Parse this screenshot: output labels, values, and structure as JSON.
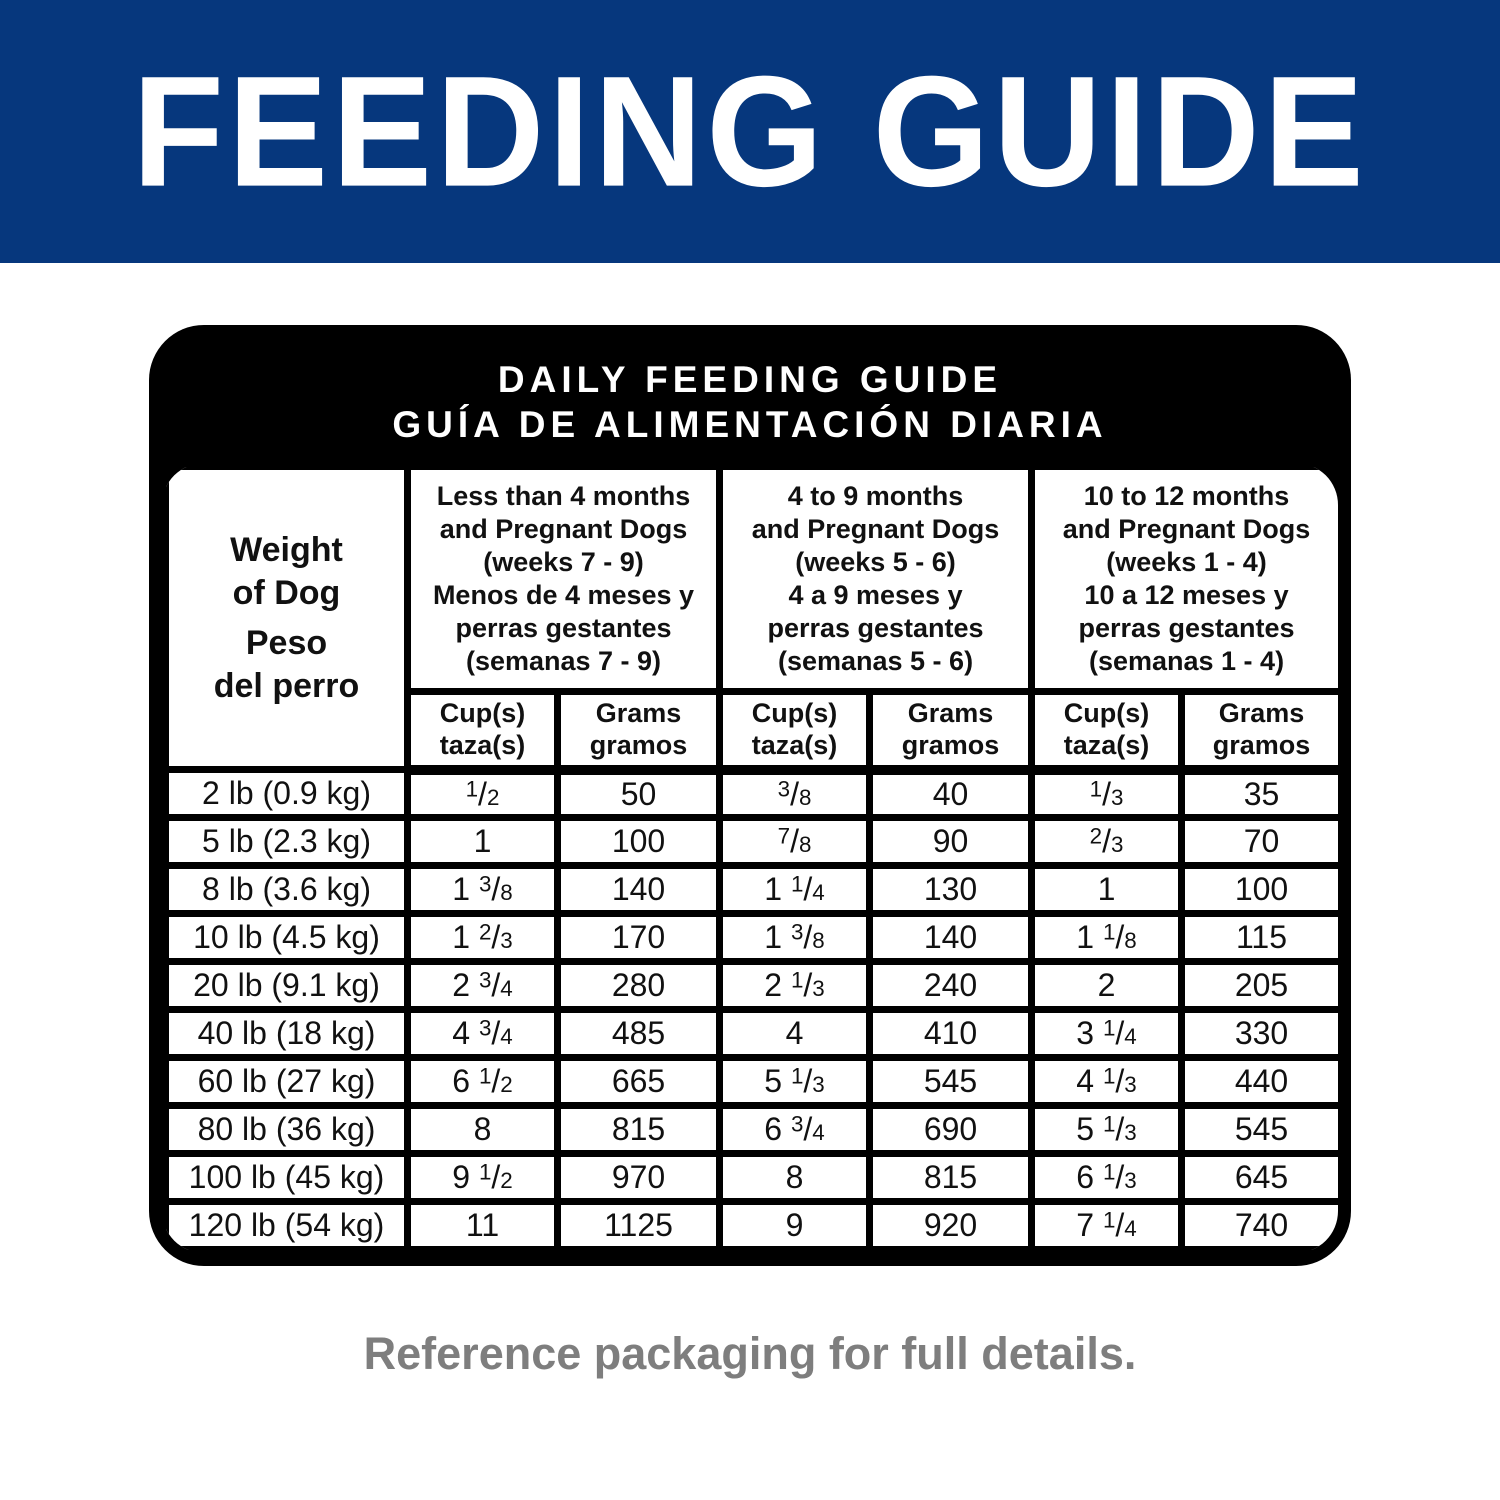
{
  "banner": {
    "title": "FEEDING GUIDE",
    "bg_color": "#06377d",
    "text_color": "#ffffff"
  },
  "card": {
    "title": "DAILY FEEDING GUIDE\nGUÍA DE ALIMENTACIÓN DIARIA",
    "bg_color": "#000000"
  },
  "table": {
    "weight_header": {
      "en": "Weight\nof Dog",
      "es": "Peso\ndel perro"
    },
    "groups": [
      {
        "en": "Less than 4 months\nand Pregnant Dogs\n(weeks 7 - 9)",
        "es": "Menos de 4 meses y\nperras gestantes\n(semanas 7 - 9)"
      },
      {
        "en": "4 to 9 months\nand Pregnant Dogs\n(weeks 5 - 6)",
        "es": "4 a 9 meses y\nperras gestantes\n(semanas 5 - 6)"
      },
      {
        "en": "10 to 12 months\nand Pregnant Dogs\n(weeks 1 - 4)",
        "es": "10 a 12 meses y\nperras gestantes\n(semanas 1 - 4)"
      }
    ],
    "sub_headers": {
      "cups": "Cup(s)\ntaza(s)",
      "grams": "Grams\ngramos"
    },
    "rows": [
      {
        "weight": "2 lb (0.9 kg)",
        "cells": [
          "1/2",
          "50",
          "3/8",
          "40",
          "1/3",
          "35"
        ]
      },
      {
        "weight": "5 lb (2.3 kg)",
        "cells": [
          "1",
          "100",
          "7/8",
          "90",
          "2/3",
          "70"
        ]
      },
      {
        "weight": "8 lb (3.6 kg)",
        "cells": [
          "1 3/8",
          "140",
          "1 1/4",
          "130",
          "1",
          "100"
        ]
      },
      {
        "weight": "10 lb (4.5 kg)",
        "cells": [
          "1 2/3",
          "170",
          "1 3/8",
          "140",
          "1 1/8",
          "115"
        ]
      },
      {
        "weight": "20 lb (9.1 kg)",
        "cells": [
          "2 3/4",
          "280",
          "2 1/3",
          "240",
          "2",
          "205"
        ]
      },
      {
        "weight": "40 lb (18 kg)",
        "cells": [
          "4 3/4",
          "485",
          "4",
          "410",
          "3 1/4",
          "330"
        ]
      },
      {
        "weight": "60 lb (27 kg)",
        "cells": [
          "6 1/2",
          "665",
          "5 1/3",
          "545",
          "4 1/3",
          "440"
        ]
      },
      {
        "weight": "80 lb (36 kg)",
        "cells": [
          "8",
          "815",
          "6 3/4",
          "690",
          "5 1/3",
          "545"
        ]
      },
      {
        "weight": "100 lb (45 kg)",
        "cells": [
          "9 1/2",
          "970",
          "8",
          "815",
          "6 1/3",
          "645"
        ]
      },
      {
        "weight": "120 lb (54 kg)",
        "cells": [
          "11",
          "1125",
          "9",
          "920",
          "7 1/4",
          "740"
        ]
      }
    ]
  },
  "footer": {
    "note": "Reference packaging for full details.",
    "text_color": "#7e7e7e"
  }
}
